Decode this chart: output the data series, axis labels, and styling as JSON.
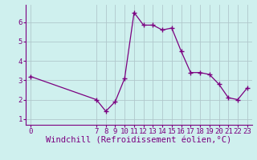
{
  "x": [
    0,
    7,
    8,
    9,
    10,
    11,
    12,
    13,
    14,
    15,
    16,
    17,
    18,
    19,
    20,
    21,
    22,
    23
  ],
  "y": [
    3.2,
    2.0,
    1.4,
    1.9,
    3.1,
    6.5,
    5.85,
    5.85,
    5.6,
    5.7,
    4.5,
    3.4,
    3.4,
    3.3,
    2.8,
    2.1,
    2.0,
    2.6
  ],
  "line_color": "#7b0080",
  "marker": "+",
  "marker_size": 4,
  "bg_color": "#cff0ee",
  "grid_color": "#b0c8cc",
  "xlabel": "Windchill (Refroidissement éolien,°C)",
  "xlabel_color": "#7b0080",
  "xticks": [
    0,
    7,
    8,
    9,
    10,
    11,
    12,
    13,
    14,
    15,
    16,
    17,
    18,
    19,
    20,
    21,
    22,
    23
  ],
  "yticks": [
    1,
    2,
    3,
    4,
    5,
    6
  ],
  "xlim": [
    -0.5,
    23.5
  ],
  "ylim": [
    0.7,
    6.9
  ],
  "tick_color": "#7b0080",
  "tick_labelsize": 6.5,
  "xlabel_fontsize": 7.5,
  "ylabel_fontsize": 7
}
